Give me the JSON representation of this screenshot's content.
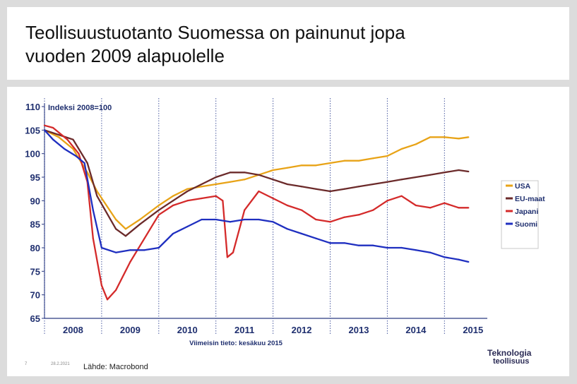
{
  "slide": {
    "title_line1": "Teollisuustuotanto Suomessa on painunut jopa",
    "title_line2": "vuoden 2009 alapuolelle",
    "page_number": "7",
    "date": "28.2.2021",
    "source": "Lähde: Macrobond",
    "logo_line1": "Teknologia",
    "logo_line2": "teollisuus"
  },
  "colors": {
    "USA": "#e8a317",
    "EU-maat": "#6b2a2a",
    "Japani": "#d42a2a",
    "Suomi": "#1f2fc0",
    "axis_text": "#1f2f6f",
    "grid": "#4a5aa0"
  },
  "chart_data": {
    "type": "line",
    "title": "Indeksi 2008=100",
    "note": "Viimeisin tieto: kesäkuu 2015",
    "xlabel": "",
    "ylabel": "",
    "ylim": [
      65,
      110
    ],
    "yticks": [
      110,
      105,
      100,
      95,
      90,
      85,
      80,
      75,
      70,
      65
    ],
    "xlim": [
      2008.0,
      2015.75
    ],
    "year_labels": [
      "2008",
      "2009",
      "2010",
      "2011",
      "2012",
      "2013",
      "2014",
      "2015"
    ],
    "legend_position": "right",
    "series": [
      {
        "name": "USA",
        "x": [
          2008.0,
          2008.25,
          2008.5,
          2008.75,
          2008.92,
          2009.25,
          2009.42,
          2009.67,
          2010.0,
          2010.25,
          2010.5,
          2010.75,
          2011.0,
          2011.25,
          2011.5,
          2011.75,
          2012.0,
          2012.25,
          2012.5,
          2012.75,
          2013.0,
          2013.25,
          2013.5,
          2013.75,
          2014.0,
          2014.25,
          2014.5,
          2014.75,
          2015.0,
          2015.25,
          2015.42
        ],
        "values": [
          105,
          103.5,
          101,
          96,
          92,
          86,
          84,
          86,
          89,
          91,
          92.5,
          93,
          93.5,
          94,
          94.5,
          95.5,
          96.5,
          97,
          97.5,
          97.5,
          98,
          98.5,
          98.5,
          99,
          99.5,
          101,
          102,
          103.5,
          103.5,
          103.2,
          103.5
        ]
      },
      {
        "name": "EU-maat",
        "x": [
          2008.0,
          2008.25,
          2008.5,
          2008.75,
          2008.92,
          2009.25,
          2009.42,
          2009.67,
          2010.0,
          2010.25,
          2010.5,
          2010.75,
          2011.0,
          2011.25,
          2011.5,
          2011.75,
          2012.0,
          2012.25,
          2012.5,
          2012.75,
          2013.0,
          2013.25,
          2013.5,
          2013.75,
          2014.0,
          2014.25,
          2014.5,
          2014.75,
          2015.0,
          2015.25,
          2015.42
        ],
        "values": [
          105,
          104,
          103,
          98,
          91,
          84,
          82.5,
          85,
          88,
          90,
          92,
          93.5,
          95,
          96,
          96,
          95.5,
          94.5,
          93.5,
          93,
          92.5,
          92,
          92.5,
          93,
          93.5,
          94,
          94.5,
          95,
          95.5,
          96,
          96.5,
          96.2
        ]
      },
      {
        "name": "Japani",
        "x": [
          2008.0,
          2008.15,
          2008.4,
          2008.6,
          2008.75,
          2008.85,
          2009.0,
          2009.1,
          2009.25,
          2009.5,
          2009.75,
          2010.0,
          2010.25,
          2010.5,
          2010.75,
          2011.0,
          2011.12,
          2011.2,
          2011.3,
          2011.5,
          2011.75,
          2012.0,
          2012.25,
          2012.5,
          2012.75,
          2013.0,
          2013.25,
          2013.5,
          2013.75,
          2014.0,
          2014.25,
          2014.5,
          2014.75,
          2015.0,
          2015.25,
          2015.42
        ],
        "values": [
          106,
          105.5,
          103,
          100,
          94,
          82,
          72,
          69,
          71,
          77,
          82,
          87,
          89,
          90,
          90.5,
          91,
          90,
          78,
          79,
          88,
          92,
          90.5,
          89,
          88,
          86,
          85.5,
          86.5,
          87,
          88,
          90,
          91,
          89,
          88.5,
          89.5,
          88.5,
          88.5
        ]
      },
      {
        "name": "Suomi",
        "x": [
          2008.0,
          2008.15,
          2008.35,
          2008.55,
          2008.7,
          2008.85,
          2009.0,
          2009.25,
          2009.5,
          2009.75,
          2010.0,
          2010.25,
          2010.5,
          2010.75,
          2011.0,
          2011.25,
          2011.5,
          2011.75,
          2012.0,
          2012.25,
          2012.5,
          2012.75,
          2013.0,
          2013.25,
          2013.5,
          2013.75,
          2014.0,
          2014.25,
          2014.5,
          2014.75,
          2015.0,
          2015.25,
          2015.42
        ],
        "values": [
          105,
          103,
          101,
          99.5,
          98,
          88,
          80,
          79,
          79.5,
          79.5,
          80,
          83,
          84.5,
          86,
          86,
          85.5,
          86,
          86,
          85.5,
          84,
          83,
          82,
          81,
          81,
          80.5,
          80.5,
          80,
          80,
          79.5,
          79,
          78,
          77.5,
          77
        ]
      }
    ]
  }
}
